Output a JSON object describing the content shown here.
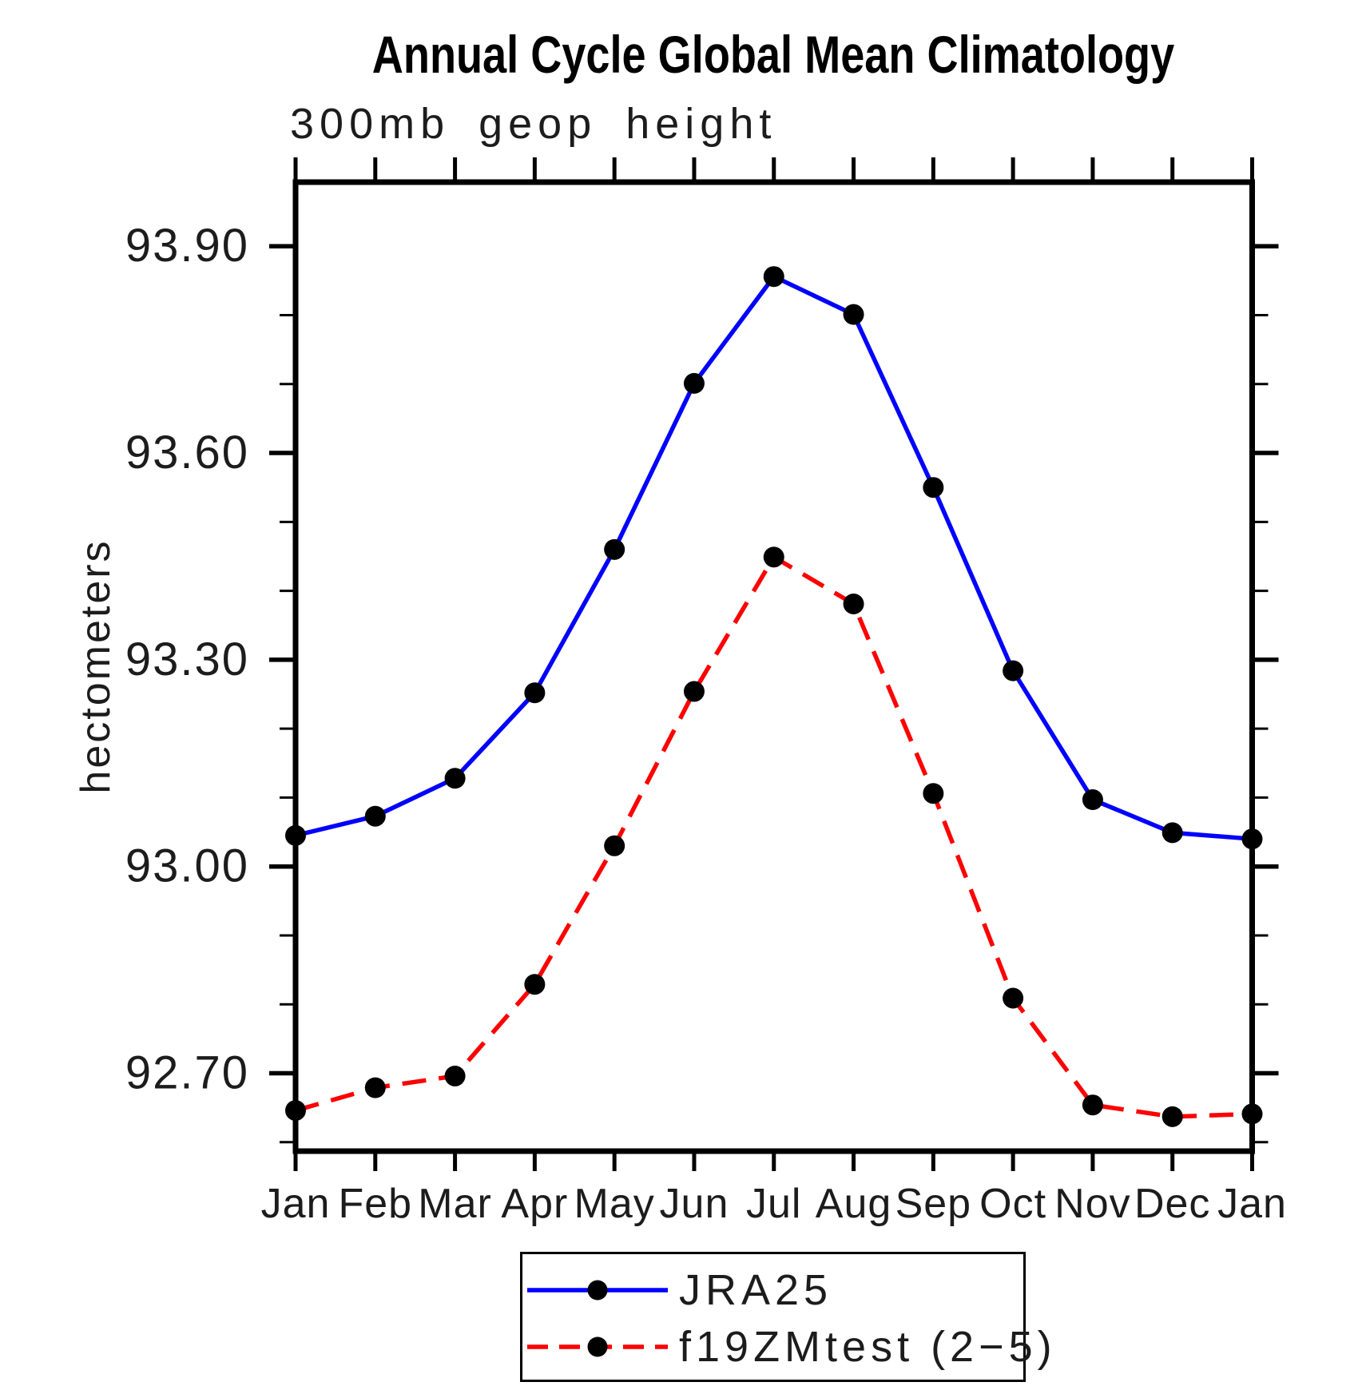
{
  "title": "Annual Cycle Global Mean Climatology",
  "subtitle": "300mb geop height",
  "y_axis_title": "hectometers",
  "colors": {
    "series_jra25": "#0000ff",
    "series_f19zmtest": "#ff0000",
    "marker": "#000000",
    "axis": "#000000",
    "background": "#ffffff"
  },
  "legend": {
    "items": [
      {
        "label": "JRA25",
        "line_style": "solid",
        "color": "#0000ff"
      },
      {
        "label": "f19ZMtest (2−5)",
        "line_style": "dashed",
        "color": "#ff0000"
      }
    ]
  },
  "chart_data": {
    "type": "line",
    "title": "Annual Cycle Global Mean Climatology",
    "subtitle": "300mb geop height",
    "xlabel": "",
    "ylabel": "hectometers",
    "categories": [
      "Jan",
      "Feb",
      "Mar",
      "Apr",
      "May",
      "Jun",
      "Jul",
      "Aug",
      "Sep",
      "Oct",
      "Nov",
      "Dec",
      "Jan"
    ],
    "series": [
      {
        "name": "JRA25",
        "color": "#0000ff",
        "line_style": "solid",
        "marker": "filled-circle",
        "marker_color": "#000000",
        "values": [
          93.045,
          93.073,
          93.128,
          93.252,
          93.46,
          93.701,
          93.856,
          93.801,
          93.55,
          93.284,
          93.097,
          93.049,
          93.04
        ]
      },
      {
        "name": "f19ZMtest (2−5)",
        "color": "#ff0000",
        "line_style": "dashed",
        "marker": "filled-circle",
        "marker_color": "#000000",
        "values": [
          92.646,
          92.679,
          92.696,
          92.829,
          93.03,
          93.254,
          93.449,
          93.381,
          93.106,
          92.809,
          92.654,
          92.637,
          92.641
        ]
      }
    ],
    "ylim": [
      92.587,
      93.993
    ],
    "y_ticks": {
      "major": [
        {
          "value": 93.9,
          "label": "93.90"
        },
        {
          "value": 93.6,
          "label": "93.60"
        },
        {
          "value": 93.3,
          "label": "93.30"
        },
        {
          "value": 93.0,
          "label": "93.00"
        },
        {
          "value": 92.7,
          "label": "92.70"
        }
      ],
      "minor": [
        93.8,
        93.7,
        93.5,
        93.4,
        93.2,
        93.1,
        92.9,
        92.8,
        92.6
      ]
    },
    "grid": false,
    "legend_position": "bottom"
  }
}
